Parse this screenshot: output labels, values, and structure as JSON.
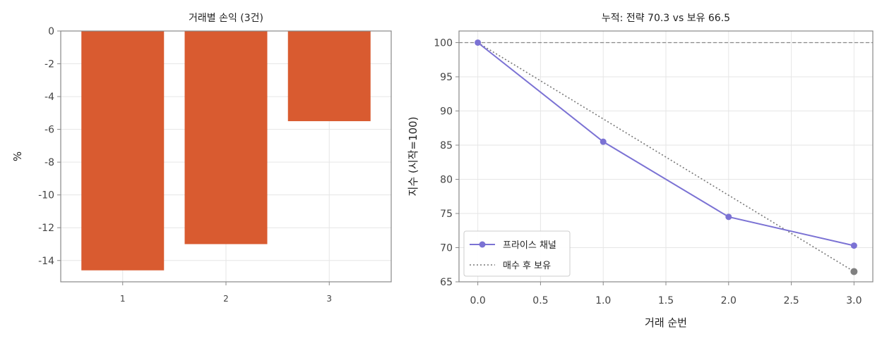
{
  "colors": {
    "bar": "#d95b30",
    "strategy": "#7b72d4",
    "hold": "#777777",
    "baseline": "#888888",
    "end_marker": "#808080",
    "grid": "#e6e6e6",
    "frame": "#888888"
  },
  "chart_data": [
    {
      "type": "bar",
      "title": "거래별 손익 (3건)",
      "categories": [
        "1",
        "2",
        "3"
      ],
      "values": [
        -14.6,
        -13.0,
        -5.5
      ],
      "xlabel": "",
      "ylabel": "%",
      "ylim": [
        -15.3,
        0
      ],
      "yticks": [
        0,
        -2,
        -4,
        -6,
        -8,
        -10,
        -12,
        -14
      ],
      "grid": true
    },
    {
      "type": "line",
      "title": "누적: 전략 70.3 vs 보유 66.5",
      "xlabel": "거래 순번",
      "ylabel": "지수 (시작=100)",
      "xlim": [
        -0.15,
        3.15
      ],
      "ylim": [
        65,
        101.7
      ],
      "xticks": [
        "0.0",
        "0.5",
        "1.0",
        "1.5",
        "2.0",
        "2.5",
        "3.0"
      ],
      "yticks": [
        65,
        70,
        75,
        80,
        85,
        90,
        95,
        100
      ],
      "baseline": 100,
      "grid": true,
      "legend_position": "lower-left",
      "series": [
        {
          "name": "프라이스 채널",
          "style": "solid-markers",
          "x": [
            0,
            1,
            2,
            3
          ],
          "y": [
            100,
            85.5,
            74.5,
            70.3
          ]
        },
        {
          "name": "매수 후 보유",
          "style": "dotted",
          "x": [
            0,
            3
          ],
          "y": [
            100,
            66.5
          ]
        }
      ]
    }
  ]
}
